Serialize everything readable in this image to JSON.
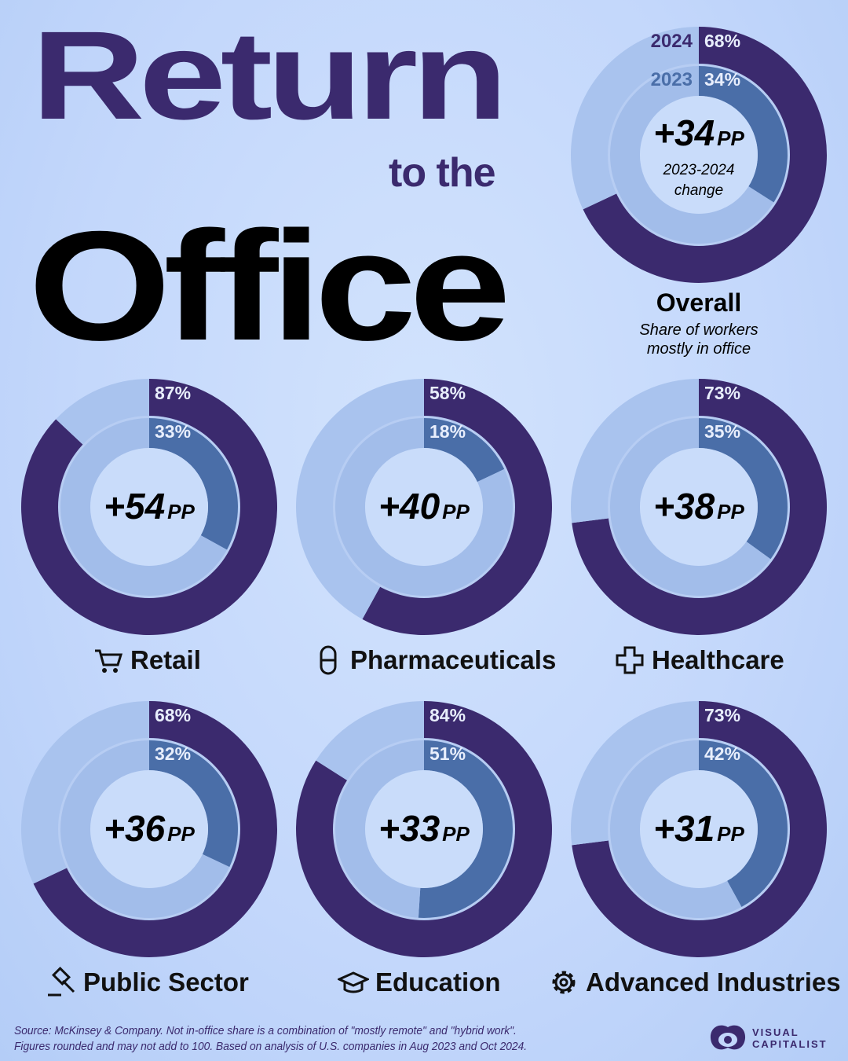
{
  "title": {
    "line1": "Return",
    "line2": "to the",
    "line3": "Office"
  },
  "colors": {
    "outer_in": "#3b2a6e",
    "outer_out": "#a9c3ee",
    "inner_in": "#4a6ea8",
    "inner_out": "#a2bdea",
    "center": "#c9dcfa"
  },
  "chart_data": {
    "type": "donut",
    "series_names": [
      "2024",
      "2023"
    ],
    "unit": "%",
    "overall": {
      "label": "Overall",
      "subtitle_line1": "Share of workers",
      "subtitle_line2": "mostly in office",
      "y2024": 68,
      "y2023": 34,
      "y2024_label": "68%",
      "y2023_label": "34%",
      "change": "+34",
      "change_unit": "PP",
      "change_caption1": "2023-2024",
      "change_caption2": "change"
    },
    "categories": [
      {
        "name": "Retail",
        "icon": "shopping-cart-icon",
        "y2024": 87,
        "y2023": 33,
        "y2024_label": "87%",
        "y2023_label": "33%",
        "change": "+54",
        "change_unit": "PP"
      },
      {
        "name": "Pharmaceuticals",
        "icon": "pill-icon",
        "y2024": 58,
        "y2023": 18,
        "y2024_label": "58%",
        "y2023_label": "18%",
        "change": "+40",
        "change_unit": "PP"
      },
      {
        "name": "Healthcare",
        "icon": "medical-cross-icon",
        "y2024": 73,
        "y2023": 35,
        "y2024_label": "73%",
        "y2023_label": "35%",
        "change": "+38",
        "change_unit": "PP"
      },
      {
        "name": "Public Sector",
        "icon": "gavel-icon",
        "y2024": 68,
        "y2023": 32,
        "y2024_label": "68%",
        "y2023_label": "32%",
        "change": "+36",
        "change_unit": "PP"
      },
      {
        "name": "Education",
        "icon": "graduation-cap-icon",
        "y2024": 84,
        "y2023": 51,
        "y2024_label": "84%",
        "y2023_label": "51%",
        "change": "+33",
        "change_unit": "PP"
      },
      {
        "name": "Advanced Industries",
        "icon": "gear-icon",
        "y2024": 73,
        "y2023": 42,
        "y2024_label": "73%",
        "y2023_label": "42%",
        "change": "+31",
        "change_unit": "PP"
      }
    ]
  },
  "footer": {
    "source_line1": "Source: McKinsey & Company. Not in-office share is a combination of \"mostly remote\" and \"hybrid work\".",
    "source_line2": "Figures rounded and may not add to 100. Based on analysis of U.S. companies in Aug 2023 and Oct 2024.",
    "logo_line1": "VISUAL",
    "logo_line2": "CAPITALIST"
  }
}
